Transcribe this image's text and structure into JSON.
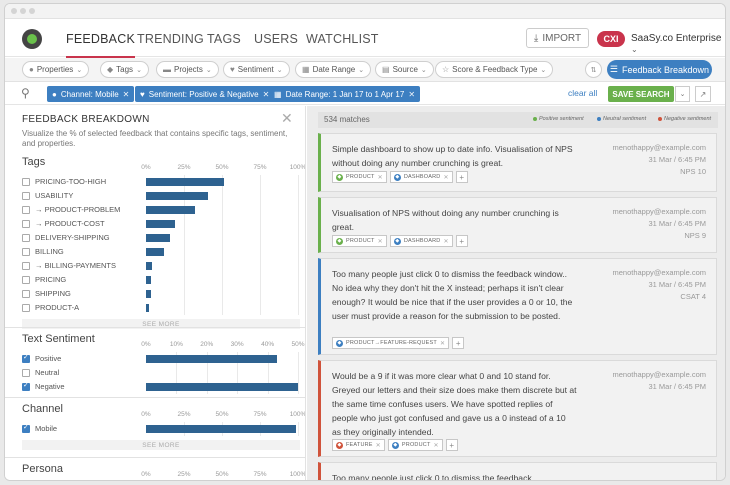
{
  "nav": {
    "tabs": [
      {
        "label": "FEEDBACK",
        "active": true
      },
      {
        "label": "TRENDING",
        "active": false
      },
      {
        "label": "TAGS",
        "active": false
      },
      {
        "label": "USERS",
        "active": false
      },
      {
        "label": "WATCHLIST",
        "active": false
      }
    ],
    "import_label": "IMPORT",
    "badge": "CXI",
    "org_name": "SaaSy.co Enterprise"
  },
  "filters": {
    "pills": [
      "Properties",
      "Tags",
      "Projects",
      "Sentiment",
      "Date Range",
      "Source",
      "Score & Feedback Type"
    ],
    "breakdown_label": "Feedback Breakdown"
  },
  "active_filters": {
    "chips": [
      "Channel: Mobile",
      "Sentiment: Positive & Negative",
      "Date Range: 1 Jan 17 to 1 Apr 17"
    ],
    "clear_all": "clear all",
    "save_search": "SAVE SEARCH"
  },
  "breakdown": {
    "title": "FEEDBACK BREAKDOWN",
    "description": "Visualize the % of selected feedback that contains specific tags, sentiment, and properties.",
    "see_more": "SEE MORE",
    "sections": [
      {
        "title": "Tags",
        "axis": [
          "0%",
          "25%",
          "50%",
          "75%",
          "100%"
        ],
        "axis_max": 100,
        "rows": [
          {
            "label": "PRICING-TOO-HIGH",
            "value": 51,
            "checked": false
          },
          {
            "label": "USABILITY",
            "value": 41,
            "checked": false
          },
          {
            "label": "→ PRODUCT-PROBLEM",
            "value": 32,
            "checked": false
          },
          {
            "label": "→ PRODUCT-COST",
            "value": 19,
            "checked": false
          },
          {
            "label": "DELIVERY-SHIPPING",
            "value": 16,
            "checked": false
          },
          {
            "label": "BILLING",
            "value": 12,
            "checked": false
          },
          {
            "label": "→ BILLING-PAYMENTS",
            "value": 4,
            "checked": false
          },
          {
            "label": "PRICING",
            "value": 3,
            "checked": false
          },
          {
            "label": "SHIPPING",
            "value": 3,
            "checked": false
          },
          {
            "label": "PRODUCT-A",
            "value": 2,
            "checked": false
          }
        ]
      },
      {
        "title": "Text Sentiment",
        "axis": [
          "0%",
          "10%",
          "20%",
          "30%",
          "40%",
          "50%"
        ],
        "axis_max": 50,
        "rows": [
          {
            "label": "Positive",
            "value": 43,
            "checked": true
          },
          {
            "label": "Neutral",
            "value": 0,
            "checked": false
          },
          {
            "label": "Negative",
            "value": 50,
            "checked": true
          }
        ]
      },
      {
        "title": "Channel",
        "axis": [
          "0%",
          "25%",
          "50%",
          "75%",
          "100%"
        ],
        "axis_max": 100,
        "rows": [
          {
            "label": "Mobile",
            "value": 99,
            "checked": true
          }
        ]
      },
      {
        "title": "Persona",
        "axis": [
          "0%",
          "25%",
          "50%",
          "75%",
          "100%"
        ],
        "axis_max": 100,
        "rows": []
      }
    ]
  },
  "results": {
    "matches": "534 matches",
    "legend": [
      {
        "label": "Positive sentiment",
        "color": "#6ab04c"
      },
      {
        "label": "Neutral sentiment",
        "color": "#3d7fc1"
      },
      {
        "label": "Negative sentiment",
        "color": "#d0533b"
      }
    ],
    "cards": [
      {
        "text": "Simple dashboard to show up to date info. Visualisation of NPS without doing any number crunching is great.",
        "email": "menothappy@example.com",
        "date": "31 Mar / 6:45 PM",
        "score": "NPS 10",
        "sentiment_color": "#6ab04c",
        "tags": [
          {
            "label": "PRODUCT",
            "color": "#6ab04c"
          },
          {
            "label": "DASHBOARD",
            "color": "#3d7fc1"
          }
        ]
      },
      {
        "text": "Visualisation of NPS without doing any number crunching is great.",
        "email": "menothappy@example.com",
        "date": "31 Mar / 6:45 PM",
        "score": "NPS 9",
        "sentiment_color": "#6ab04c",
        "tags": [
          {
            "label": "PRODUCT",
            "color": "#6ab04c"
          },
          {
            "label": "DASHBOARD",
            "color": "#3d7fc1"
          }
        ]
      },
      {
        "text": "Too many people just click 0 to dismiss the feedback window.. No idea why they don't hit the X instead; perhaps it isn't clear enough? It would be nice that if the user provides a 0 or 10, the user must provide a reason for the submission to be posted.",
        "email": "menothappy@example.com",
        "date": "31 Mar / 6:45 PM",
        "score": "CSAT 4",
        "sentiment_color": "#3d7fc1",
        "tags": [
          {
            "label": "PRODUCT→FEATURE-REQUEST",
            "color": "#3d7fc1"
          }
        ]
      },
      {
        "text": "Would be a 9 if it was more clear what 0 and 10 stand for. Greyed our letters and their size does make them discrete but at the same time confuses users. We have spotted replies of people who just got confused and gave us a 0 instead of a 10 as they originally intended.",
        "email": "menothappy@example.com",
        "date": "31 Mar / 6:45 PM",
        "score": "",
        "sentiment_color": "#d0533b",
        "tags": [
          {
            "label": "FEATURE",
            "color": "#d0533b"
          },
          {
            "label": "PRODUCT",
            "color": "#3d7fc1"
          }
        ]
      },
      {
        "text": "Too many people just click 0 to dismiss the feedback",
        "email": "",
        "date": "",
        "score": "",
        "sentiment_color": "#d0533b",
        "tags": []
      }
    ]
  }
}
